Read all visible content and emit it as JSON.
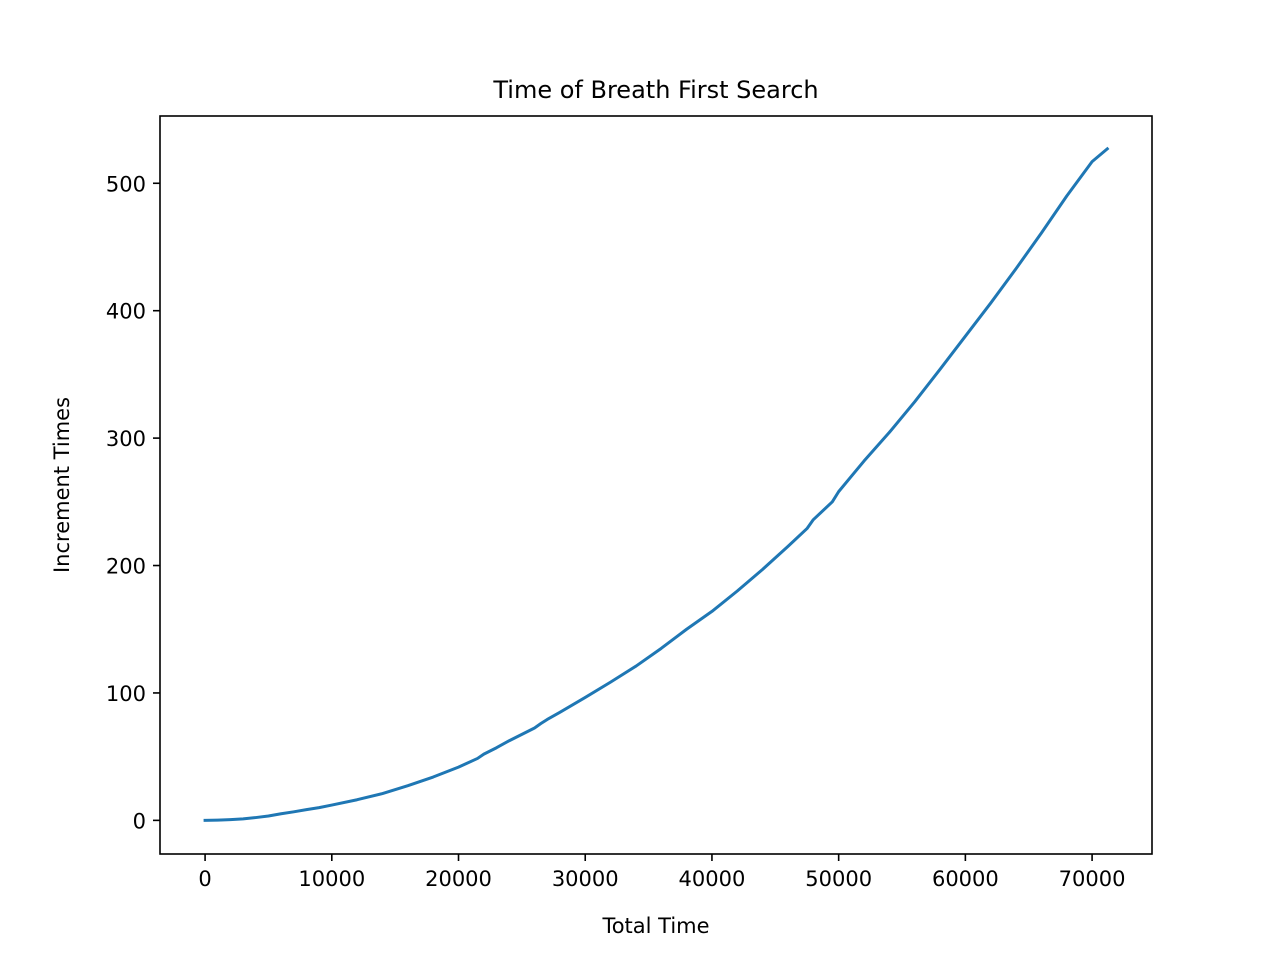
{
  "chart_data": {
    "type": "line",
    "title": "Time of Breath First Search",
    "xlabel": "Total Time",
    "ylabel": "Increment Times",
    "xlim": [
      -3558,
      74728
    ],
    "ylim": [
      -26.4,
      552.8
    ],
    "xticks": [
      0,
      10000,
      20000,
      30000,
      40000,
      50000,
      60000,
      70000
    ],
    "xtick_labels": [
      "0",
      "10000",
      "20000",
      "30000",
      "40000",
      "50000",
      "60000",
      "70000"
    ],
    "yticks": [
      0,
      100,
      200,
      300,
      400,
      500
    ],
    "ytick_labels": [
      "0",
      "100",
      "200",
      "300",
      "400",
      "500"
    ],
    "grid": false,
    "legend": "none",
    "colors": {
      "line": "#1f77b4",
      "axes": "#000000",
      "background": "#ffffff"
    },
    "series": [
      {
        "x": [
          0,
          1000,
          2000,
          3000,
          4000,
          5000,
          6000,
          7000,
          8000,
          9000,
          10000,
          12000,
          14000,
          16000,
          18000,
          20000,
          21500,
          22000,
          23000,
          24000,
          25000,
          26000,
          26500,
          27000,
          28000,
          30000,
          32000,
          34000,
          36000,
          38000,
          40000,
          42000,
          44000,
          46000,
          47500,
          48000,
          49500,
          50000,
          51000,
          52000,
          54000,
          56000,
          58000,
          60000,
          62000,
          64000,
          66000,
          68000,
          70000,
          71200
        ],
        "y": [
          0,
          0.2,
          0.6,
          1.2,
          2.2,
          3.4,
          5.2,
          6.7,
          8.4,
          10.0,
          12.0,
          16.2,
          21.0,
          27.2,
          34.0,
          41.8,
          48.6,
          52.0,
          57.0,
          62.5,
          67.5,
          72.5,
          76.0,
          79.2,
          84.8,
          96.5,
          108.5,
          121.0,
          135.0,
          150.0,
          164.0,
          180.0,
          197.0,
          215.0,
          229.0,
          236.0,
          250.0,
          258.0,
          270.0,
          282.0,
          304.5,
          328.5,
          354.0,
          380.0,
          406.0,
          433.0,
          461.0,
          490.0,
          517.0,
          527.0
        ]
      }
    ]
  }
}
